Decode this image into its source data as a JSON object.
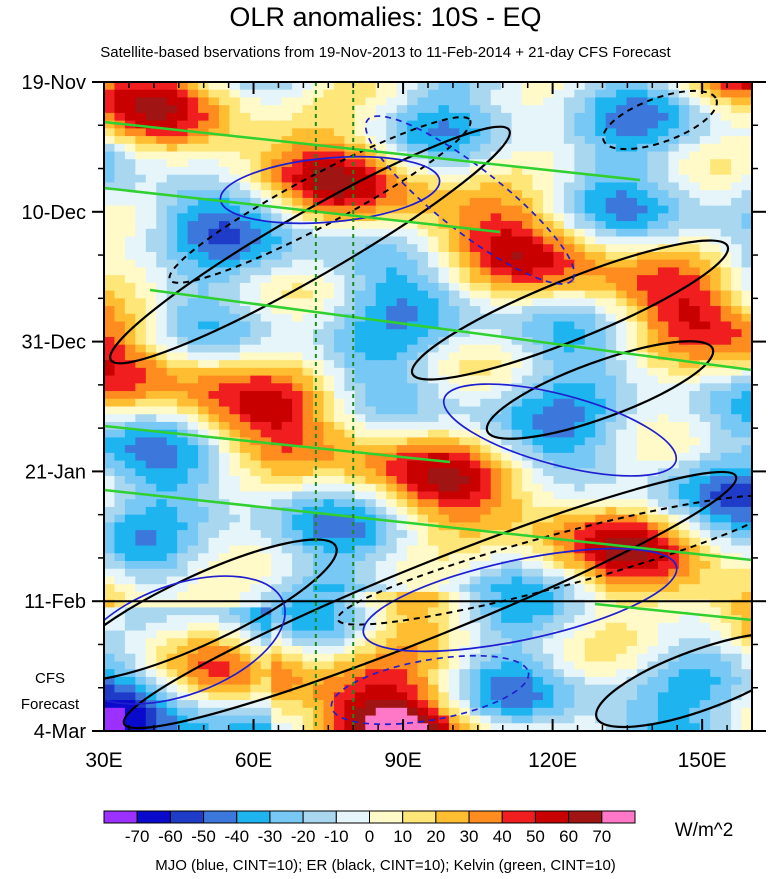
{
  "chart_data": {
    "type": "heatmap",
    "title": "OLR anomalies: 10S - EQ",
    "subtitle": "Satellite-based bservations from 19-Nov-2013 to 11-Feb-2014 + 21-day CFS Forecast",
    "x_ticks": [
      {
        "value": 30,
        "label": "30E"
      },
      {
        "value": 60,
        "label": "60E"
      },
      {
        "value": 90,
        "label": "90E"
      },
      {
        "value": 120,
        "label": "120E"
      },
      {
        "value": 150,
        "label": "150E"
      }
    ],
    "xlim": [
      30,
      160
    ],
    "y_ticks": [
      {
        "day": 0,
        "label": "19-Nov"
      },
      {
        "day": 21,
        "label": "10-Dec"
      },
      {
        "day": 42,
        "label": "31-Dec"
      },
      {
        "day": 63,
        "label": "21-Jan"
      },
      {
        "day": 84,
        "label": "11-Feb"
      },
      {
        "day": 105,
        "label": "4-Mar"
      }
    ],
    "ylim_days": [
      0,
      105
    ],
    "forecast_start_day": 84,
    "forecast_label_line1": "CFS",
    "forecast_label_line2": "Forecast",
    "reference_longitudes": [
      72.5,
      80
    ],
    "colorbar": {
      "labels": [
        "-70",
        "-60",
        "-50",
        "-40",
        "-30",
        "-20",
        "-10",
        "0",
        "10",
        "20",
        "30",
        "40",
        "50",
        "60",
        "70"
      ],
      "colors": [
        "#9b30ff",
        "#0a0acd",
        "#1e3cc8",
        "#3c78dc",
        "#1eb4f0",
        "#78c8f5",
        "#aad7f0",
        "#e6f5fa",
        "#fffac8",
        "#ffe678",
        "#ffbe32",
        "#ff8c1e",
        "#f01e1e",
        "#c80000",
        "#a01414",
        "#ff78c8"
      ],
      "units": "W/m^2"
    },
    "footer": "MJO (blue, CINT=10); ER (black, CINT=10); Kelvin (green, CINT=10)"
  }
}
